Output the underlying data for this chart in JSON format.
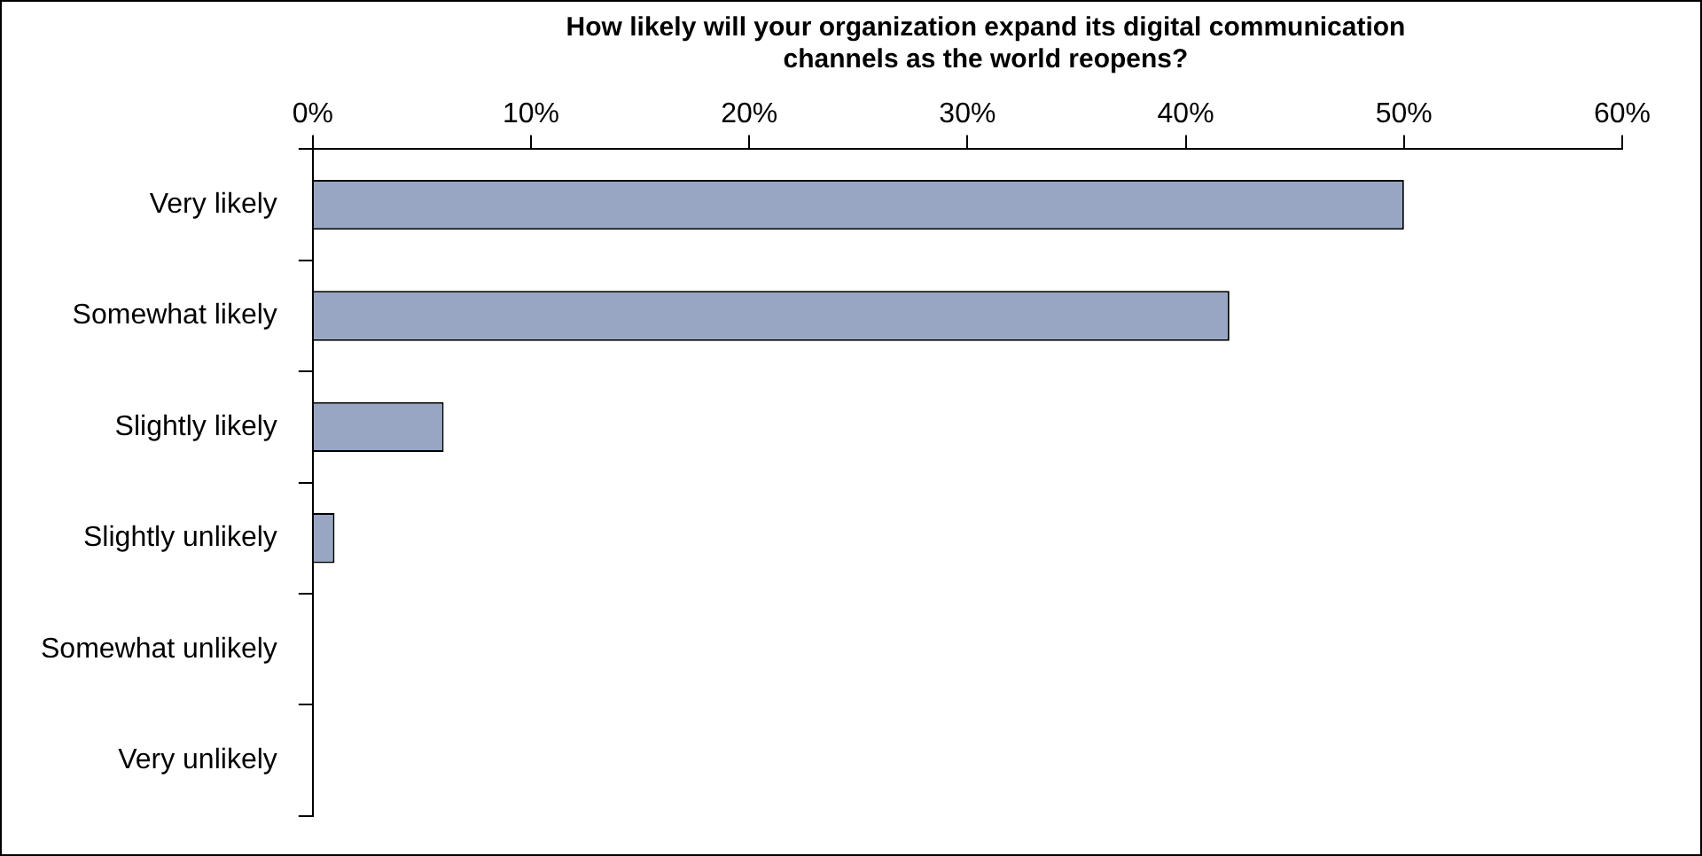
{
  "chart_data": {
    "type": "bar",
    "orientation": "horizontal",
    "title": "How likely will your organization expand its digital communication channels as the world reopens?",
    "categories": [
      "Very likely",
      "Somewhat likely",
      "Slightly likely",
      "Slightly unlikely",
      "Somewhat unlikely",
      "Very unlikely"
    ],
    "values": [
      50,
      42,
      6,
      1,
      0,
      0
    ],
    "color": "#98a6c4",
    "xlim": [
      0,
      60
    ],
    "xticks": [
      {
        "value": 0,
        "label": "0%"
      },
      {
        "value": 10,
        "label": "10%"
      },
      {
        "value": 20,
        "label": "20%"
      },
      {
        "value": 30,
        "label": "30%"
      },
      {
        "value": 40,
        "label": "40%"
      },
      {
        "value": 50,
        "label": "50%"
      },
      {
        "value": 60,
        "label": "60%"
      }
    ],
    "grid": false,
    "legend": false
  }
}
